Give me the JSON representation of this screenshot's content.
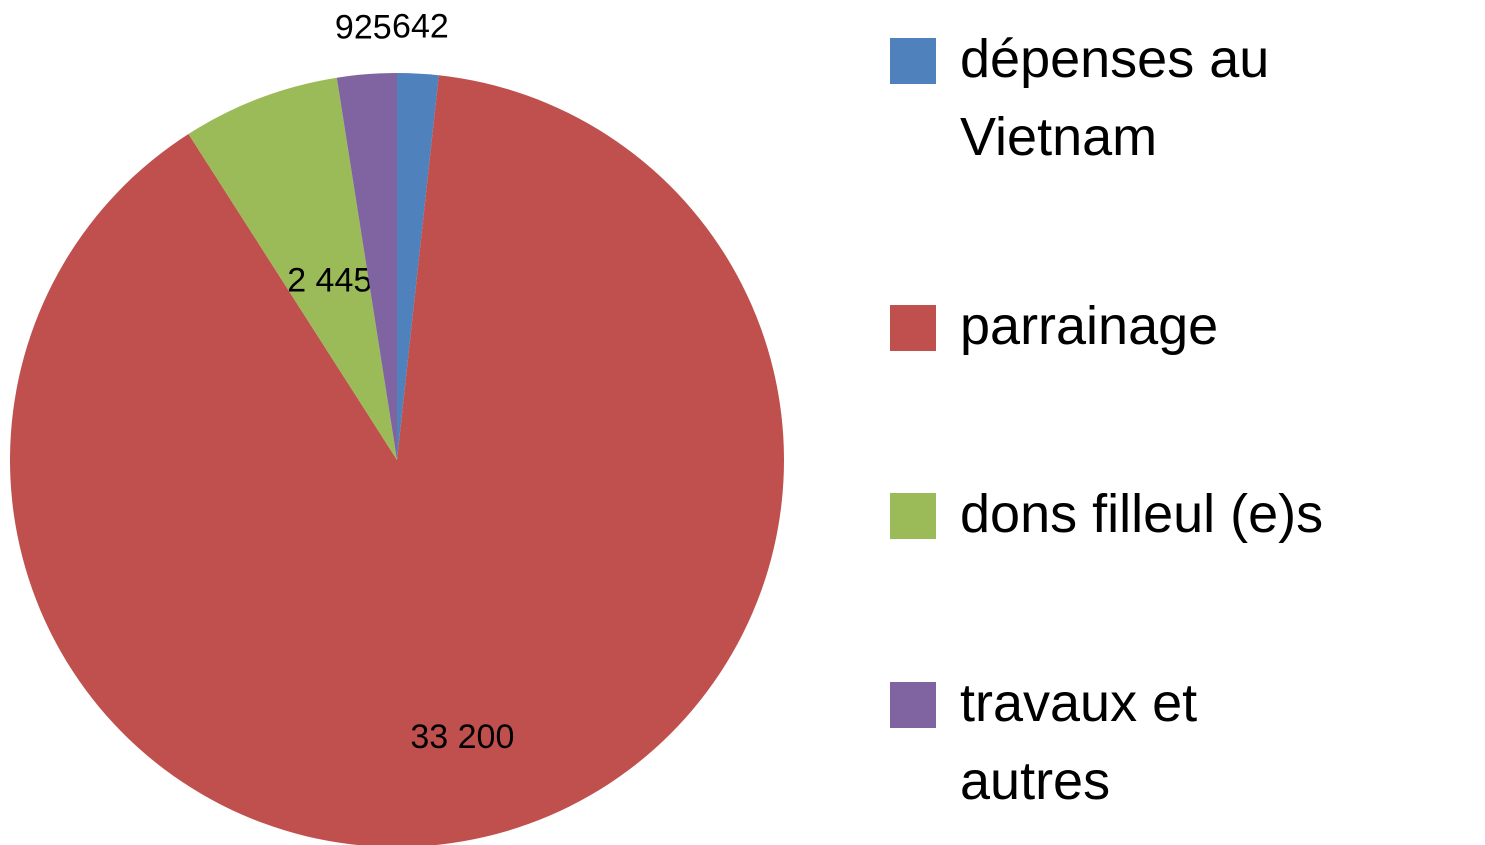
{
  "chart_data": {
    "type": "pie",
    "categories": [
      "dépenses au Vietnam",
      "parrainage",
      "dons filleul (e)s",
      "travaux et autres"
    ],
    "values": [
      642,
      33200,
      2445,
      925
    ],
    "value_labels": [
      "642",
      "33 200",
      "2 445",
      "925"
    ],
    "colors": [
      "#4f81bd",
      "#c0504d",
      "#9bbb59",
      "#8064a2"
    ],
    "legend": "right"
  }
}
